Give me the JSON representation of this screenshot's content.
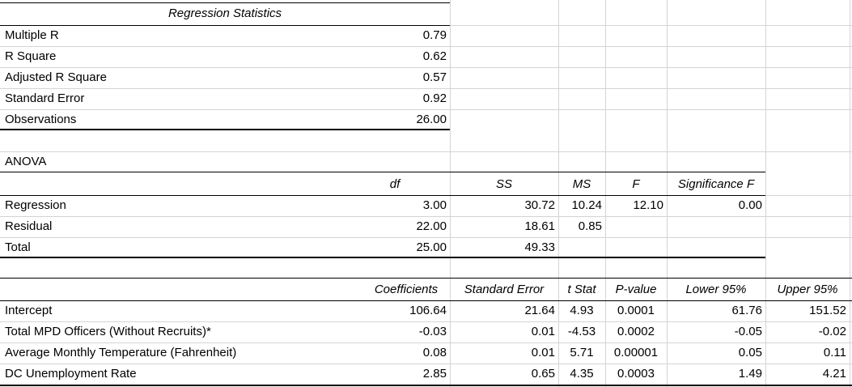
{
  "regression_statistics": {
    "title": "Regression Statistics",
    "rows": [
      {
        "label": "Multiple R",
        "value": "0.79"
      },
      {
        "label": "R Square",
        "value": "0.62"
      },
      {
        "label": "Adjusted R Square",
        "value": "0.57"
      },
      {
        "label": "Standard Error",
        "value": "0.92"
      },
      {
        "label": "Observations",
        "value": "26.00"
      }
    ]
  },
  "anova": {
    "title": "ANOVA",
    "headers": {
      "df": "df",
      "ss": "SS",
      "ms": "MS",
      "f": "F",
      "sig": "Significance F"
    },
    "rows": [
      {
        "label": "Regression",
        "df": "3.00",
        "ss": "30.72",
        "ms": "10.24",
        "f": "12.10",
        "sig": "0.00"
      },
      {
        "label": "Residual",
        "df": "22.00",
        "ss": "18.61",
        "ms": "0.85",
        "f": "",
        "sig": ""
      },
      {
        "label": "Total",
        "df": "25.00",
        "ss": "49.33",
        "ms": "",
        "f": "",
        "sig": ""
      }
    ]
  },
  "coefficients": {
    "headers": {
      "coef": "Coefficients",
      "se": "Standard Error",
      "t": "t Stat",
      "p": "P-value",
      "lower": "Lower 95%",
      "upper": "Upper 95%"
    },
    "rows": [
      {
        "label": "Intercept",
        "coef": "106.64",
        "se": "21.64",
        "t": "4.93",
        "p": "0.0001",
        "lower": "61.76",
        "upper": "151.52"
      },
      {
        "label": "Total MPD Officers (Without Recruits)*",
        "coef": "-0.03",
        "se": "0.01",
        "t": "-4.53",
        "p": "0.0002",
        "lower": "-0.05",
        "upper": "-0.02"
      },
      {
        "label": "Average Monthly Temperature (Fahrenheit)",
        "coef": "0.08",
        "se": "0.01",
        "t": "5.71",
        "p": "0.00001",
        "lower": "0.05",
        "upper": "0.11"
      },
      {
        "label": "DC Unemployment Rate",
        "coef": "2.85",
        "se": "0.65",
        "t": "4.35",
        "p": "0.0003",
        "lower": "1.49",
        "upper": "4.21"
      }
    ]
  }
}
